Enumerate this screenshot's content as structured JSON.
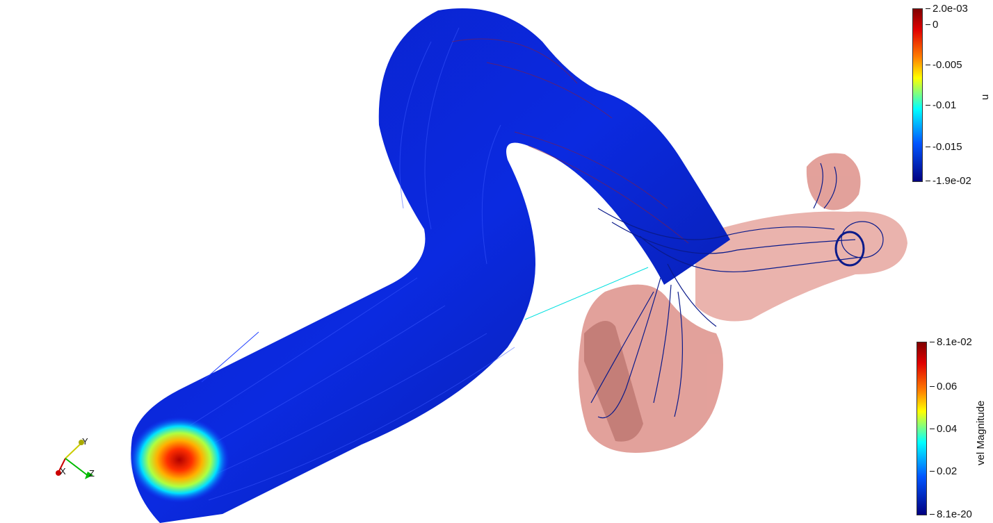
{
  "scalar_bar_u": {
    "title": "u",
    "max_label": "2.0e-03",
    "min_label": "-1.9e-02",
    "ticks": [
      "0",
      "-0.005",
      "-0.01",
      "-0.015"
    ],
    "colors": [
      "#800000",
      "#e00000",
      "#ff7f00",
      "#ffff00",
      "#00ffff",
      "#0055ff",
      "#000080"
    ]
  },
  "scalar_bar_vel": {
    "title": "vel Magnitude",
    "max_label": "8.1e-02",
    "min_label": "8.1e-20",
    "ticks": [
      "0.06",
      "0.04",
      "0.02"
    ],
    "colors": [
      "#800000",
      "#e00000",
      "#ff7f00",
      "#ffff00",
      "#00ffff",
      "#0055ff",
      "#000080"
    ]
  },
  "orientation_axes": {
    "x": "X",
    "y": "Y",
    "z": "Z"
  },
  "scene": {
    "surface_color": "#d98a82",
    "streamline_color": "#0a1a8a",
    "inlet_hot_color": "#e03000"
  }
}
